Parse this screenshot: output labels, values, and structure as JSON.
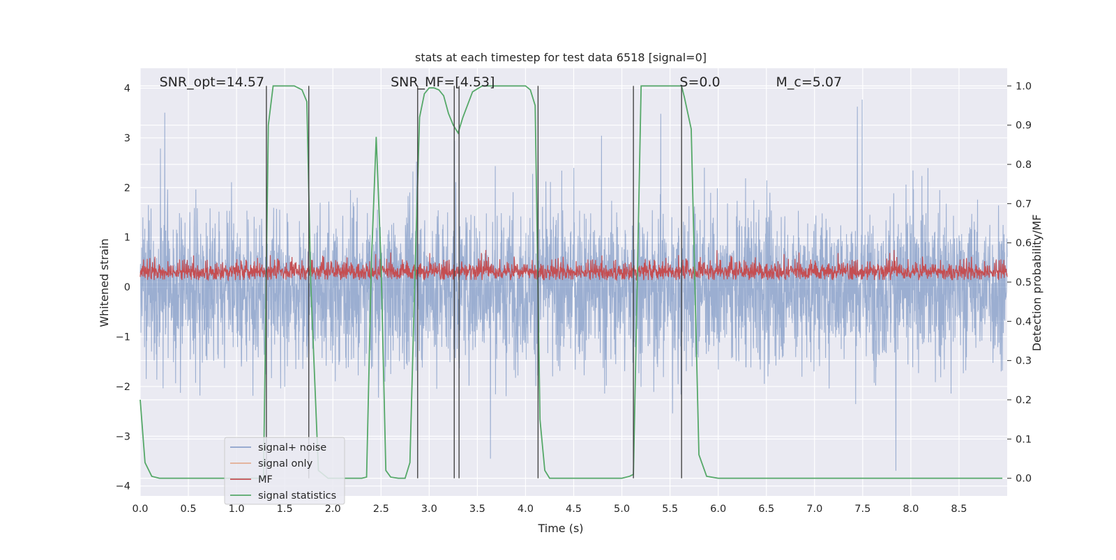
{
  "chart_data": {
    "type": "line",
    "title": "stats at each timestep for test data 6518 [signal=0]",
    "xlabel": "Time (s)",
    "ylabel": "Whitened strain",
    "y2label": "Detection probability/MF",
    "xlim": [
      0,
      9.0
    ],
    "ylim": [
      -4.2,
      4.4
    ],
    "y2lim": [
      -0.045,
      1.045
    ],
    "xticks": [
      "0.0",
      "0.5",
      "1.0",
      "1.5",
      "2.0",
      "2.5",
      "3.0",
      "3.5",
      "4.0",
      "4.5",
      "5.0",
      "5.5",
      "6.0",
      "6.5",
      "7.0",
      "7.5",
      "8.0",
      "8.5"
    ],
    "yticks": [
      "4",
      "3",
      "2",
      "1",
      "0",
      "−1",
      "−2",
      "−3",
      "−4"
    ],
    "y2ticks": [
      "1.0",
      "0.9",
      "0.8",
      "0.7",
      "0.6",
      "0.5",
      "0.4",
      "0.3",
      "0.2",
      "0.1",
      "0.0"
    ],
    "grid": true,
    "legend_position": "lower-left",
    "annotations": [
      {
        "text": "SNR_opt=14.57",
        "x": 0.2
      },
      {
        "text": "SNR_MF=[4.53]",
        "x": 2.6
      },
      {
        "text": "S=0.0",
        "x": 5.6
      },
      {
        "text": "M_c=5.07",
        "x": 6.6
      }
    ],
    "vertical_lines_x": [
      1.31,
      1.75,
      2.88,
      3.26,
      3.31,
      4.13,
      5.12,
      5.62
    ],
    "series": [
      {
        "name": "signal+ noise",
        "color": "#4c72b0",
        "note_range": [
          -3.7,
          3.8
        ]
      },
      {
        "name": "signal only",
        "color": "#dd8452"
      },
      {
        "name": "MF",
        "color": "#c44e52"
      },
      {
        "name": "signal statistics",
        "color": "#55a868",
        "axis": "right",
        "x": [
          0.0,
          0.05,
          0.12,
          0.2,
          0.3,
          0.5,
          0.8,
          1.0,
          1.2,
          1.28,
          1.33,
          1.38,
          1.45,
          1.6,
          1.68,
          1.73,
          1.77,
          1.85,
          1.95,
          2.1,
          2.3,
          2.35,
          2.4,
          2.45,
          2.5,
          2.55,
          2.6,
          2.68,
          2.75,
          2.8,
          2.85,
          2.9,
          2.95,
          3.0,
          3.05,
          3.1,
          3.15,
          3.2,
          3.25,
          3.3,
          3.35,
          3.45,
          3.55,
          3.65,
          3.8,
          4.0,
          4.05,
          4.1,
          4.15,
          4.2,
          4.25,
          4.3,
          4.4,
          4.7,
          5.0,
          5.08,
          5.12,
          5.16,
          5.2,
          5.3,
          5.5,
          5.62,
          5.65,
          5.72,
          5.8,
          5.88,
          6.0,
          6.5,
          7.0,
          8.0,
          8.95
        ],
        "y": [
          0.2,
          0.04,
          0.005,
          0.0,
          0.0,
          0.0,
          0.0,
          0.0,
          0.0,
          0.0,
          0.9,
          1.0,
          1.0,
          1.0,
          0.99,
          0.96,
          0.5,
          0.02,
          0.0,
          0.0,
          0.0,
          0.003,
          0.55,
          0.87,
          0.55,
          0.02,
          0.003,
          0.0,
          0.0,
          0.04,
          0.5,
          0.92,
          0.98,
          0.995,
          0.995,
          0.99,
          0.975,
          0.93,
          0.9,
          0.88,
          0.92,
          0.985,
          1.0,
          1.0,
          1.0,
          1.0,
          0.99,
          0.95,
          0.15,
          0.02,
          0.0,
          0.0,
          0.0,
          0.0,
          0.0,
          0.005,
          0.01,
          0.5,
          1.0,
          1.0,
          1.0,
          1.0,
          0.97,
          0.89,
          0.06,
          0.005,
          0.0,
          0.0,
          0.0,
          0.0,
          0.0
        ]
      }
    ]
  }
}
